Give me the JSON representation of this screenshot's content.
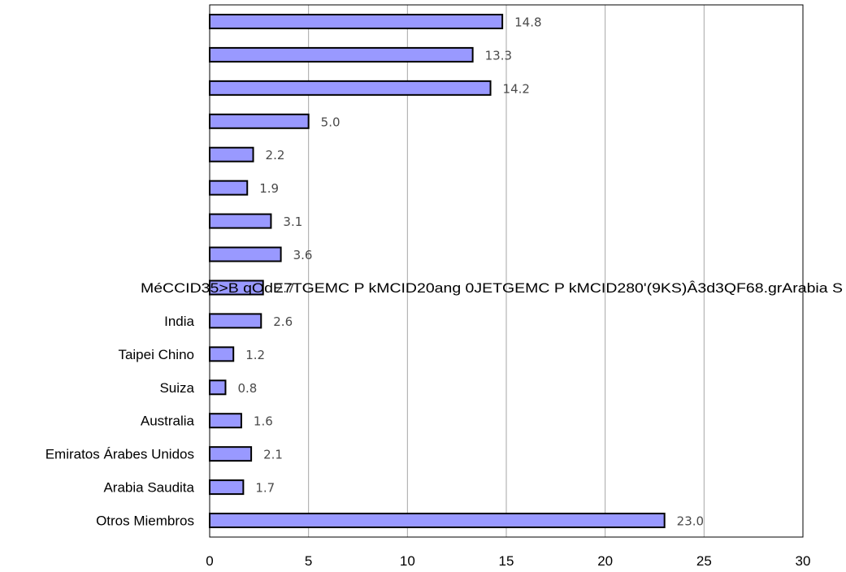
{
  "chart_data": {
    "type": "bar",
    "orientation": "horizontal",
    "categories": [
      "",
      "",
      "",
      "",
      "",
      "",
      "",
      "",
      "",
      "India",
      "Taipei Chino",
      "Suiza",
      "Australia",
      "Emiratos Árabes Unidos",
      "Arabia Saudita",
      "Otros Miembros"
    ],
    "values": [
      14.8,
      13.3,
      14.2,
      5.0,
      2.2,
      1.9,
      3.1,
      3.6,
      2.7,
      2.6,
      1.2,
      0.8,
      1.6,
      2.1,
      1.7,
      23.0
    ],
    "value_labels": [
      "14.8",
      "13.3",
      "14.2",
      "5.0",
      "2.2",
      "1.9",
      "3.1",
      "3.6",
      "2.7",
      "2.6",
      "1.2",
      "0.8",
      "1.6",
      "2.1",
      "1.7",
      "23.0"
    ],
    "garbled_row_text": "MéCCID35>B qOdE7TGEMC P kMCID20ang 0JETGEMC P kMCID280'(9KS)Â3d3QF68.grArabia S",
    "xlim": [
      0,
      30
    ],
    "x_ticks": [
      "0",
      "5",
      "10",
      "15",
      "20",
      "25",
      "30"
    ],
    "x_grid": true,
    "title": "",
    "xlabel": "",
    "ylabel": "",
    "bar_color": "#9999ff",
    "bar_edge_color": "#000000"
  }
}
